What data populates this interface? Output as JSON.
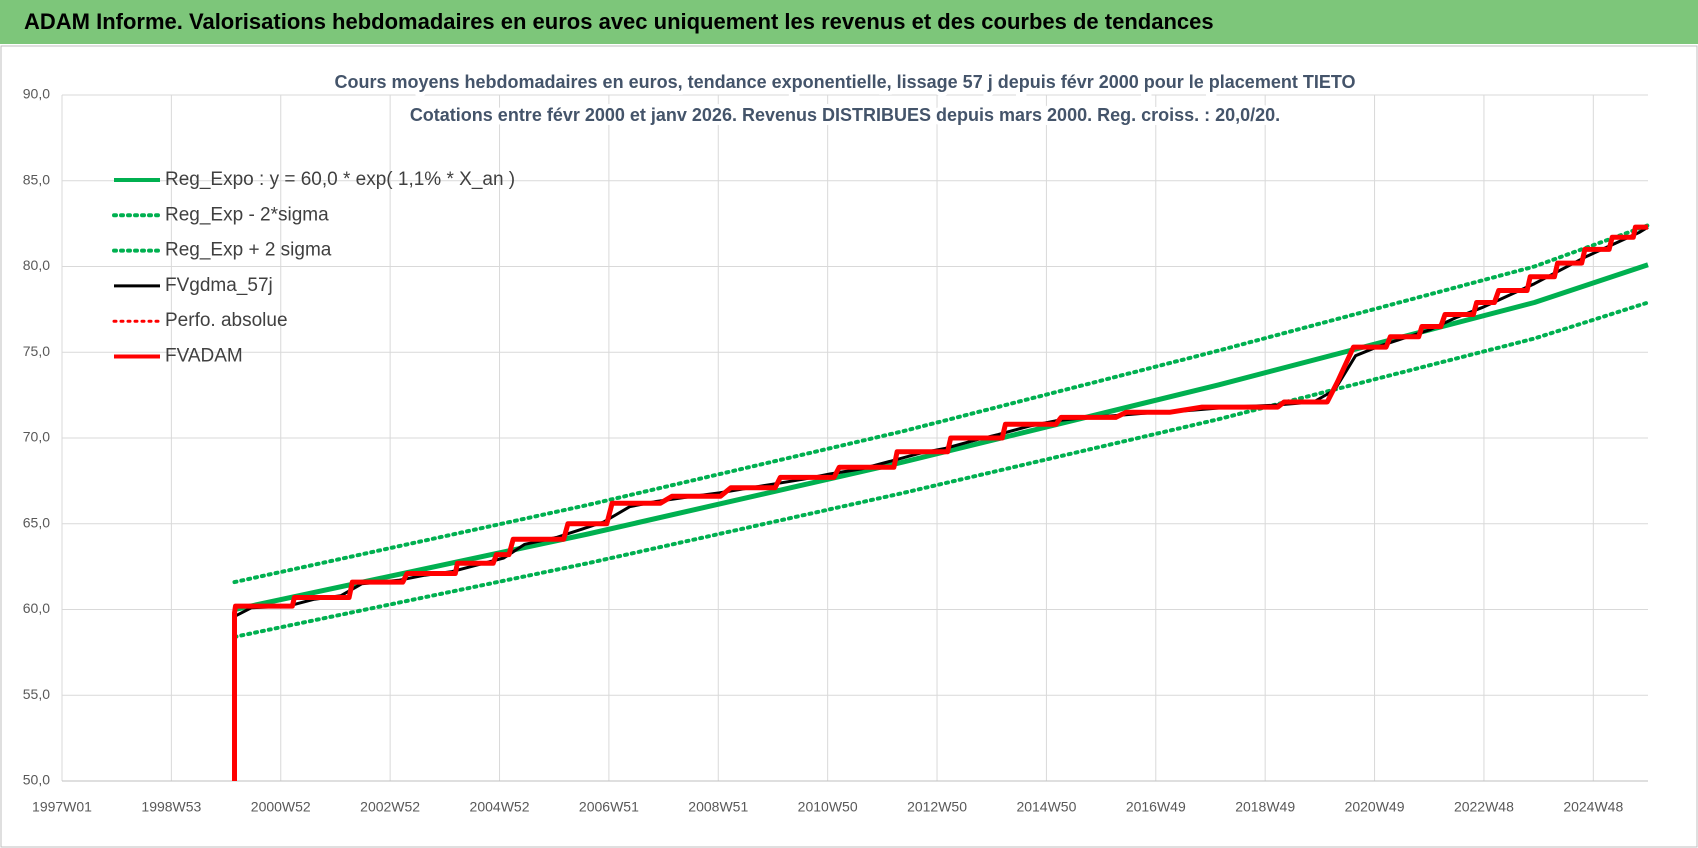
{
  "header": {
    "title": "ADAM Informe. Valorisations hebdomadaires en euros avec uniquement les revenus et des courbes de tendances"
  },
  "chart_data": {
    "type": "line",
    "title": "Cours moyens hebdomadaires en euros, tendance exponentielle, lissage 57 j depuis févr 2000 pour le placement TIETO",
    "subtitle": "Cotations entre févr 2000 et janv 2026. Revenus DISTRIBUES depuis mars 2000. Reg. croiss. : 20,0/20.",
    "xlim": [
      0,
      1508
    ],
    "xticks": [
      {
        "value": 0,
        "label": "1997W01"
      },
      {
        "value": 104,
        "label": "1998W53"
      },
      {
        "value": 208,
        "label": "2000W52"
      },
      {
        "value": 312,
        "label": "2002W52"
      },
      {
        "value": 416,
        "label": "2004W52"
      },
      {
        "value": 520,
        "label": "2006W51"
      },
      {
        "value": 624,
        "label": "2008W51"
      },
      {
        "value": 728,
        "label": "2010W50"
      },
      {
        "value": 832,
        "label": "2012W50"
      },
      {
        "value": 936,
        "label": "2014W50"
      },
      {
        "value": 1040,
        "label": "2016W49"
      },
      {
        "value": 1144,
        "label": "2018W49"
      },
      {
        "value": 1248,
        "label": "2020W49"
      },
      {
        "value": 1352,
        "label": "2022W48"
      },
      {
        "value": 1456,
        "label": "2024W48"
      }
    ],
    "ylim": [
      50,
      90
    ],
    "yticks": [
      {
        "value": 50,
        "label": "50,0"
      },
      {
        "value": 55,
        "label": "55,0"
      },
      {
        "value": 60,
        "label": "60,0"
      },
      {
        "value": 65,
        "label": "65,0"
      },
      {
        "value": 70,
        "label": "70,0"
      },
      {
        "value": 75,
        "label": "75,0"
      },
      {
        "value": 80,
        "label": "80,0"
      },
      {
        "value": 85,
        "label": "85,0"
      },
      {
        "value": 90,
        "label": "90,0"
      }
    ],
    "grid": true,
    "legend": "upper left",
    "series": [
      {
        "name": "Reg_Expo : y = 60,0 * exp( 1,1% *  X_an )",
        "color": "#00b050",
        "style": "solid",
        "width": 5,
        "x": [
          164,
          500,
          800,
          1100,
          1400,
          1508
        ],
        "values": [
          60.0,
          64.4,
          68.6,
          73.1,
          77.9,
          80.1
        ]
      },
      {
        "name": "Reg_Exp - 2*sigma",
        "color": "#00b050",
        "style": "dotted",
        "width": 4,
        "x": [
          164,
          500,
          800,
          1100,
          1400,
          1508
        ],
        "values": [
          58.4,
          62.7,
          66.8,
          71.1,
          75.8,
          77.9
        ]
      },
      {
        "name": "Reg_Exp + 2 sigma",
        "color": "#00b050",
        "style": "dotted",
        "width": 4,
        "x": [
          164,
          500,
          800,
          1100,
          1400,
          1508
        ],
        "values": [
          61.6,
          66.1,
          70.4,
          75.1,
          80.0,
          82.4
        ]
      },
      {
        "name": "FVgdma_57j",
        "color": "#000000",
        "style": "solid",
        "width": 3,
        "x": [
          164,
          180,
          215,
          240,
          265,
          285,
          320,
          345,
          370,
          395,
          420,
          440,
          470,
          495,
          515,
          540,
          565,
          600,
          625,
          655,
          675,
          705,
          730,
          760,
          785,
          815,
          840,
          870,
          890,
          920,
          945,
          975,
          1000,
          1040,
          1070,
          1110,
          1150,
          1190,
          1210,
          1230,
          1250,
          1275,
          1300,
          1325,
          1350,
          1375,
          1400,
          1425,
          1450,
          1475,
          1500,
          1508
        ],
        "values": [
          59.6,
          60.1,
          60.2,
          60.6,
          60.8,
          61.5,
          61.7,
          62.0,
          62.2,
          62.6,
          63.0,
          63.8,
          64.2,
          64.7,
          65.1,
          66.0,
          66.3,
          66.6,
          66.8,
          67.1,
          67.3,
          67.6,
          67.9,
          68.2,
          68.6,
          69.1,
          69.4,
          69.9,
          70.2,
          70.7,
          71.0,
          71.2,
          71.3,
          71.5,
          71.6,
          71.8,
          71.9,
          72.1,
          72.8,
          74.8,
          75.3,
          75.8,
          76.3,
          77.0,
          77.6,
          78.3,
          79.0,
          79.8,
          80.6,
          81.3,
          82.0,
          82.3
        ]
      },
      {
        "name": "Perfo. absolue",
        "color": "#ff0000",
        "style": "dotted",
        "width": 3,
        "x": [],
        "values": []
      },
      {
        "name": "FVADAM",
        "color": "#ff0000",
        "style": "solid",
        "width": 5,
        "x": [
          164,
          164,
          165,
          219,
          221,
          273,
          276,
          324,
          328,
          374,
          376,
          410,
          413,
          425,
          429,
          477,
          481,
          518,
          523,
          569,
          580,
          626,
          636,
          678,
          683,
          734,
          739,
          791,
          794,
          842,
          845,
          894,
          897,
          945,
          950,
          1002,
          1012,
          1053,
          1084,
          1156,
          1162,
          1203,
          1213,
          1228,
          1259,
          1263,
          1290,
          1293,
          1311,
          1315,
          1342,
          1345,
          1362,
          1366,
          1393,
          1396,
          1419,
          1422,
          1445,
          1448,
          1471,
          1474,
          1494,
          1496,
          1508
        ],
        "values": [
          50,
          59.8,
          60.2,
          60.2,
          60.7,
          60.7,
          61.6,
          61.6,
          62.1,
          62.1,
          62.7,
          62.7,
          63.2,
          63.2,
          64.1,
          64.1,
          65.0,
          65.0,
          66.2,
          66.2,
          66.6,
          66.6,
          67.1,
          67.1,
          67.7,
          67.7,
          68.3,
          68.3,
          69.2,
          69.2,
          70.0,
          70.0,
          70.8,
          70.8,
          71.2,
          71.2,
          71.5,
          71.5,
          71.8,
          71.8,
          72.1,
          72.1,
          73.3,
          75.3,
          75.3,
          75.9,
          75.9,
          76.5,
          76.5,
          77.2,
          77.2,
          77.9,
          77.9,
          78.6,
          78.6,
          79.4,
          79.4,
          80.2,
          80.2,
          81.0,
          81.0,
          81.7,
          81.7,
          82.3,
          82.3
        ]
      }
    ]
  }
}
